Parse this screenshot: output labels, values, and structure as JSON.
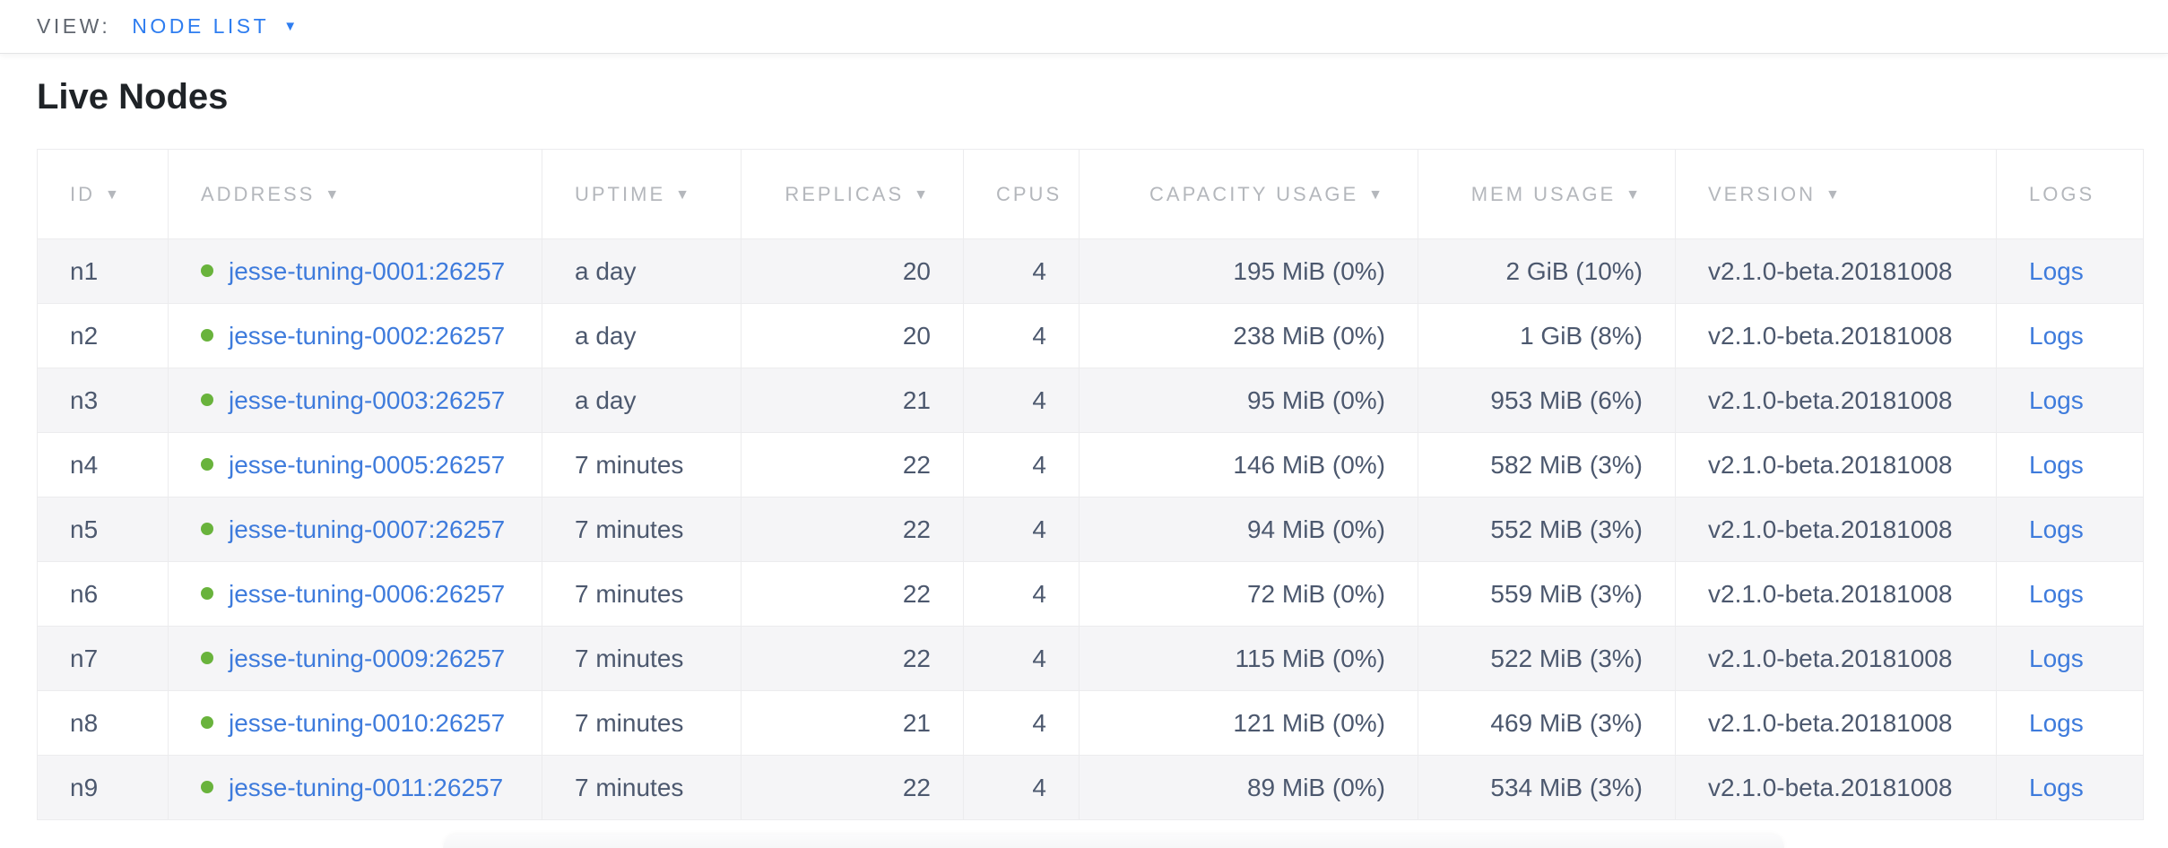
{
  "view_bar": {
    "label": "VIEW:",
    "value": "NODE LIST",
    "dropdown_icon": "triangle-down-icon"
  },
  "page": {
    "title": "Live Nodes"
  },
  "table": {
    "columns": [
      {
        "key": "id",
        "label": "ID",
        "sortable": true,
        "align": "left"
      },
      {
        "key": "address",
        "label": "ADDRESS",
        "sortable": true,
        "align": "left"
      },
      {
        "key": "uptime",
        "label": "UPTIME",
        "sortable": true,
        "align": "left"
      },
      {
        "key": "replicas",
        "label": "REPLICAS",
        "sortable": true,
        "align": "right"
      },
      {
        "key": "cpus",
        "label": "CPUS",
        "sortable": false,
        "align": "right"
      },
      {
        "key": "capacity",
        "label": "CAPACITY USAGE",
        "sortable": true,
        "align": "right"
      },
      {
        "key": "mem",
        "label": "MEM USAGE",
        "sortable": true,
        "align": "right"
      },
      {
        "key": "version",
        "label": "VERSION",
        "sortable": true,
        "align": "left"
      },
      {
        "key": "logs",
        "label": "LOGS",
        "sortable": false,
        "align": "left"
      }
    ],
    "rows": [
      {
        "id": "n1",
        "address": "jesse-tuning-0001:26257",
        "uptime": "a day",
        "replicas": "20",
        "cpus": "4",
        "capacity": "195 MiB (0%)",
        "mem": "2 GiB (10%)",
        "version": "v2.1.0-beta.20181008",
        "logs": "Logs"
      },
      {
        "id": "n2",
        "address": "jesse-tuning-0002:26257",
        "uptime": "a day",
        "replicas": "20",
        "cpus": "4",
        "capacity": "238 MiB (0%)",
        "mem": "1 GiB (8%)",
        "version": "v2.1.0-beta.20181008",
        "logs": "Logs"
      },
      {
        "id": "n3",
        "address": "jesse-tuning-0003:26257",
        "uptime": "a day",
        "replicas": "21",
        "cpus": "4",
        "capacity": "95 MiB (0%)",
        "mem": "953 MiB (6%)",
        "version": "v2.1.0-beta.20181008",
        "logs": "Logs"
      },
      {
        "id": "n4",
        "address": "jesse-tuning-0005:26257",
        "uptime": "7 minutes",
        "replicas": "22",
        "cpus": "4",
        "capacity": "146 MiB (0%)",
        "mem": "582 MiB (3%)",
        "version": "v2.1.0-beta.20181008",
        "logs": "Logs"
      },
      {
        "id": "n5",
        "address": "jesse-tuning-0007:26257",
        "uptime": "7 minutes",
        "replicas": "22",
        "cpus": "4",
        "capacity": "94 MiB (0%)",
        "mem": "552 MiB (3%)",
        "version": "v2.1.0-beta.20181008",
        "logs": "Logs"
      },
      {
        "id": "n6",
        "address": "jesse-tuning-0006:26257",
        "uptime": "7 minutes",
        "replicas": "22",
        "cpus": "4",
        "capacity": "72 MiB (0%)",
        "mem": "559 MiB (3%)",
        "version": "v2.1.0-beta.20181008",
        "logs": "Logs"
      },
      {
        "id": "n7",
        "address": "jesse-tuning-0009:26257",
        "uptime": "7 minutes",
        "replicas": "22",
        "cpus": "4",
        "capacity": "115 MiB (0%)",
        "mem": "522 MiB (3%)",
        "version": "v2.1.0-beta.20181008",
        "logs": "Logs"
      },
      {
        "id": "n8",
        "address": "jesse-tuning-0010:26257",
        "uptime": "7 minutes",
        "replicas": "21",
        "cpus": "4",
        "capacity": "121 MiB (0%)",
        "mem": "469 MiB (3%)",
        "version": "v2.1.0-beta.20181008",
        "logs": "Logs"
      },
      {
        "id": "n9",
        "address": "jesse-tuning-0011:26257",
        "uptime": "7 minutes",
        "replicas": "22",
        "cpus": "4",
        "capacity": "89 MiB (0%)",
        "mem": "534 MiB (3%)",
        "version": "v2.1.0-beta.20181008",
        "logs": "Logs"
      }
    ]
  },
  "colors": {
    "accent_blue": "#2e7df0",
    "link_blue": "#3e7bdc",
    "status_dot_green": "#69b33c",
    "header_text": "#b4b7bc",
    "cell_text": "#4c586e",
    "alt_row_bg": "#f5f5f7",
    "border": "#ececee"
  }
}
